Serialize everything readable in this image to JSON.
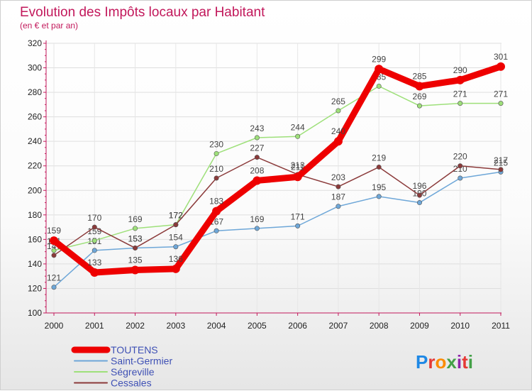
{
  "chart_data": {
    "type": "line",
    "title": "Evolution des Impôts locaux par Habitant",
    "subtitle": "(en € et par an)",
    "x": [
      "2000",
      "2001",
      "2002",
      "2003",
      "2004",
      "2005",
      "2006",
      "2007",
      "2008",
      "2009",
      "2010",
      "2011"
    ],
    "ylim": [
      100,
      320
    ],
    "yticks": [
      "100",
      "120",
      "140",
      "160",
      "180",
      "200",
      "220",
      "240",
      "260",
      "280",
      "300",
      "320"
    ],
    "series": [
      {
        "name": "TOUTENS",
        "color": "#ee0000",
        "values": [
          159,
          133,
          135,
          136,
          183,
          208,
          211,
          240,
          299,
          285,
          290,
          301
        ],
        "labels": [
          "159",
          "133",
          "135",
          "136",
          "183",
          "208",
          "211",
          "240",
          "299",
          "285",
          "290",
          "301"
        ]
      },
      {
        "name": "Saint-Germier",
        "color": "#6ea7d8",
        "values": [
          121,
          151,
          153,
          154,
          167,
          169,
          171,
          187,
          195,
          190,
          210,
          215
        ],
        "labels": [
          "121",
          "151",
          "153",
          "154",
          "167",
          "169",
          "171",
          "187",
          "195",
          "190",
          "210",
          "215"
        ]
      },
      {
        "name": "Ségreville",
        "color": "#9ee07a",
        "values": [
          151,
          159,
          169,
          172,
          230,
          243,
          244,
          265,
          285,
          269,
          271,
          271
        ],
        "labels": [
          "151",
          "159",
          "169",
          "172",
          "230",
          "243",
          "244",
          "265",
          "285",
          "269",
          "271",
          "271"
        ]
      },
      {
        "name": "Cessales",
        "color": "#8b3a3a",
        "values": [
          147,
          170,
          153,
          172,
          210,
          227,
          213,
          203,
          219,
          196,
          220,
          217
        ],
        "labels": [
          "147",
          "170",
          "153",
          "172",
          "210",
          "227",
          "213",
          "203",
          "219",
          "196",
          "220",
          "217"
        ]
      }
    ]
  },
  "brand": {
    "logo_text": "Proxiti",
    "logo_letters": [
      "P",
      "r",
      "o",
      "x",
      "i",
      "t",
      "i"
    ]
  }
}
